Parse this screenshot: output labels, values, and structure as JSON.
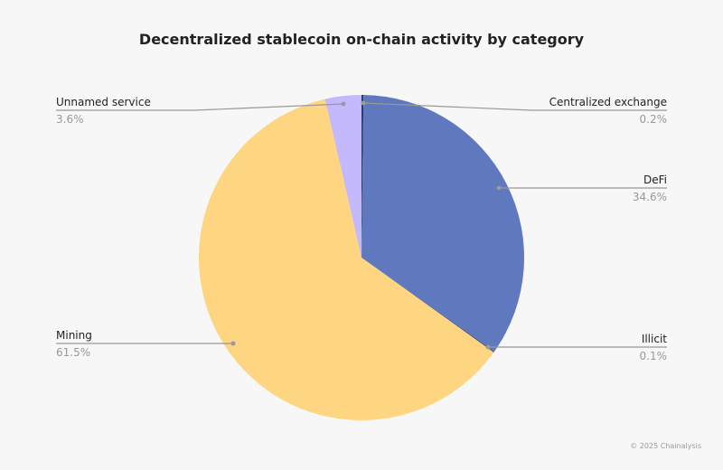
{
  "chart_data": {
    "type": "pie",
    "title": "Decentralized stablecoin on-chain activity by category",
    "start": "top",
    "direction": "clockwise",
    "slices": [
      {
        "label": "Centralized exchange",
        "value": 0.2,
        "display": "0.2%",
        "color": "#2a3a6e"
      },
      {
        "label": "DeFi",
        "value": 34.6,
        "display": "34.6%",
        "color": "#6078bd"
      },
      {
        "label": "Illicit",
        "value": 0.1,
        "display": "0.1%",
        "color": "#3a4a80"
      },
      {
        "label": "Mining",
        "value": 61.5,
        "display": "61.5%",
        "color": "#fed580"
      },
      {
        "label": "Unnamed service",
        "value": 3.6,
        "display": "3.6%",
        "color": "#c3b9fc"
      }
    ],
    "credit": "© 2025 Chainalysis"
  }
}
